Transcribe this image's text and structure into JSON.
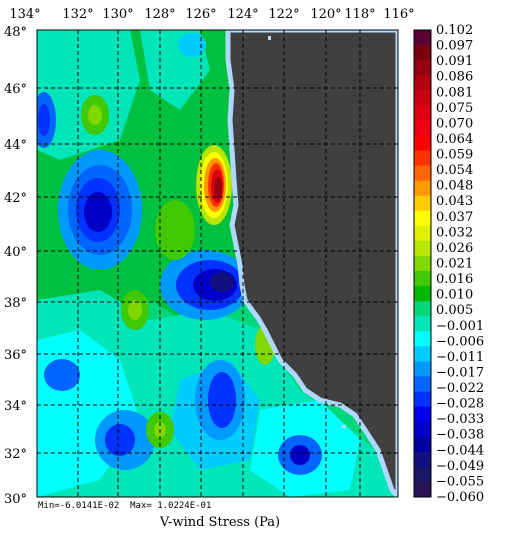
{
  "map": {
    "lon_labels": [
      "134°",
      "132°",
      "130°",
      "128°",
      "126°",
      "124°",
      "122°",
      "120°",
      "118°",
      "116°"
    ],
    "lat_labels": [
      "48°",
      "46°",
      "44°",
      "42°",
      "40°",
      "38°",
      "36°",
      "34°",
      "32°",
      "30°"
    ],
    "stats": "Min=-6.0141E-02  Max= 1.0224E-01",
    "title": "V-wind Stress (Pa)",
    "land_color": "#404040",
    "coast_color": "#b0d8ff"
  },
  "colorbar": {
    "labels": [
      "0.102",
      "0.097",
      "0.091",
      "0.086",
      "0.081",
      "0.075",
      "0.070",
      "0.064",
      "0.059",
      "0.054",
      "0.048",
      "0.043",
      "0.037",
      "0.032",
      "0.026",
      "0.021",
      "0.016",
      "0.010",
      "0.005",
      "−0.001",
      "−0.006",
      "−0.011",
      "−0.017",
      "−0.022",
      "−0.028",
      "−0.033",
      "−0.038",
      "−0.044",
      "−0.049",
      "−0.055",
      "−0.060"
    ],
    "colors": [
      "#5a0033",
      "#7a0010",
      "#950010",
      "#b00010",
      "#c80010",
      "#dc0010",
      "#ee0010",
      "#ff0000",
      "#ff3300",
      "#ff6600",
      "#ff9900",
      "#ffcc00",
      "#ffff00",
      "#e0f000",
      "#b8e600",
      "#80d800",
      "#40c800",
      "#00b800",
      "#00d67a",
      "#00e6b8",
      "#00ffff",
      "#00ccff",
      "#0099ff",
      "#0066ff",
      "#0033ff",
      "#0000ee",
      "#0000c8",
      "#0000a0",
      "#101080",
      "#1a1866",
      "#2a1456"
    ]
  }
}
